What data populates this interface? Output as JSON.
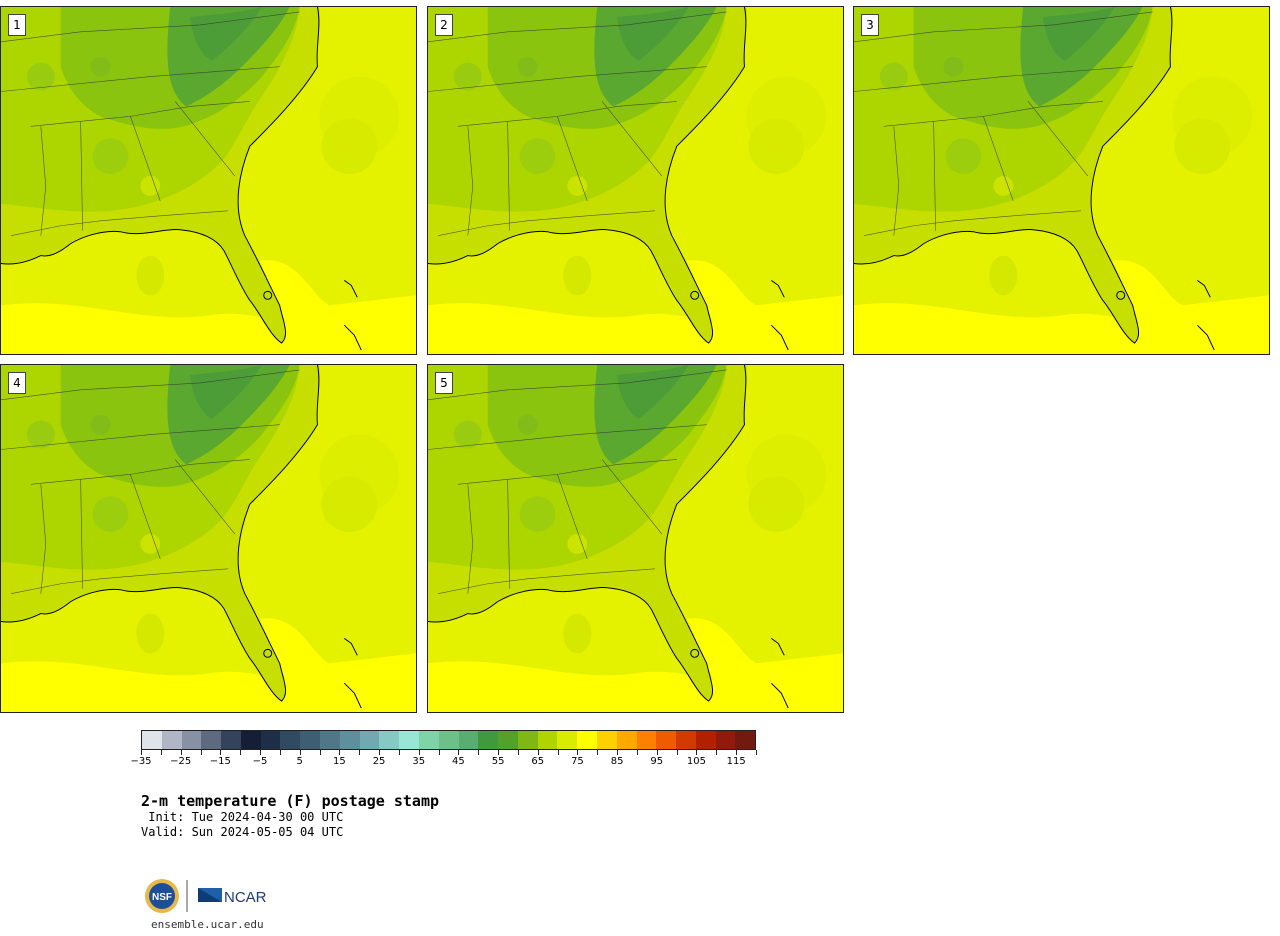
{
  "panels": [
    {
      "label": "1"
    },
    {
      "label": "2"
    },
    {
      "label": "3"
    },
    {
      "label": "4"
    },
    {
      "label": "5"
    }
  ],
  "colorbar": {
    "colors": [
      "#dfe3ea",
      "#b0b6c5",
      "#8791a3",
      "#5d6a80",
      "#34425c",
      "#141f36",
      "#1e2e48",
      "#2f4a61",
      "#3e5e74",
      "#4f7787",
      "#5f8f9c",
      "#70a9b0",
      "#86c9c4",
      "#98e6d6",
      "#7ed4a6",
      "#6cc08a",
      "#58ad70",
      "#3f9a3e",
      "#54a12a",
      "#7fb714",
      "#b0d400",
      "#d8ec00",
      "#ffff00",
      "#ffd000",
      "#ffa800",
      "#ff7f00",
      "#f05a00",
      "#d23a00",
      "#b32000",
      "#921a0d",
      "#701a10"
    ],
    "tick_labels": [
      "−35",
      "−25",
      "−15",
      "−5",
      "5",
      "15",
      "25",
      "35",
      "45",
      "55",
      "65",
      "75",
      "85",
      "95",
      "105",
      "115"
    ]
  },
  "title": "2-m temperature (F) postage stamp",
  "init": " Init: Tue 2024-04-30 00 UTC",
  "valid": "Valid: Sun 2024-05-05 04 UTC",
  "logos": {
    "nsf": "NSF",
    "ncar": "NCAR"
  },
  "website": "ensemble.ucar.edu",
  "colors": {
    "ocean_far": "#ffff00",
    "ocean_mid": "#e4f200",
    "land_warm": "#c6df00",
    "land_mid": "#9fcd00",
    "land_cool": "#7dbb1a",
    "mountains": "#4fa13a"
  }
}
